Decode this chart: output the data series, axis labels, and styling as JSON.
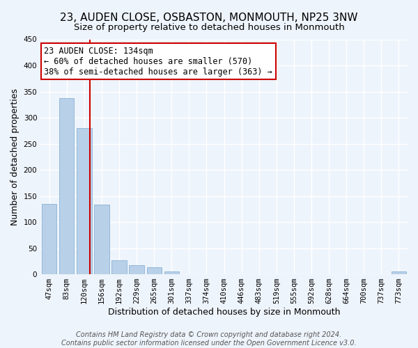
{
  "title": "23, AUDEN CLOSE, OSBASTON, MONMOUTH, NP25 3NW",
  "subtitle": "Size of property relative to detached houses in Monmouth",
  "xlabel": "Distribution of detached houses by size in Monmouth",
  "ylabel": "Number of detached properties",
  "bar_labels": [
    "47sqm",
    "83sqm",
    "120sqm",
    "156sqm",
    "192sqm",
    "229sqm",
    "265sqm",
    "301sqm",
    "337sqm",
    "374sqm",
    "410sqm",
    "446sqm",
    "483sqm",
    "519sqm",
    "555sqm",
    "592sqm",
    "628sqm",
    "664sqm",
    "700sqm",
    "737sqm",
    "773sqm"
  ],
  "bar_values": [
    135,
    337,
    280,
    133,
    27,
    18,
    13,
    6,
    0,
    0,
    0,
    0,
    0,
    0,
    0,
    0,
    0,
    0,
    0,
    0,
    5
  ],
  "bar_color": "#b8d0e8",
  "bar_edge_color": "#7aaad0",
  "vline_color": "#cc0000",
  "annotation_title": "23 AUDEN CLOSE: 134sqm",
  "annotation_line1": "← 60% of detached houses are smaller (570)",
  "annotation_line2": "38% of semi-detached houses are larger (363) →",
  "ylim": [
    0,
    450
  ],
  "yticks": [
    0,
    50,
    100,
    150,
    200,
    250,
    300,
    350,
    400,
    450
  ],
  "footer_line1": "Contains HM Land Registry data © Crown copyright and database right 2024.",
  "footer_line2": "Contains public sector information licensed under the Open Government Licence v3.0.",
  "background_color": "#eef4fb",
  "grid_color": "#ffffff",
  "annotation_box_color": "#ffffff",
  "annotation_box_edge": "#cc0000",
  "title_fontsize": 11,
  "subtitle_fontsize": 9.5,
  "axis_label_fontsize": 9,
  "tick_fontsize": 7.5,
  "annotation_fontsize": 8.5,
  "footer_fontsize": 7
}
